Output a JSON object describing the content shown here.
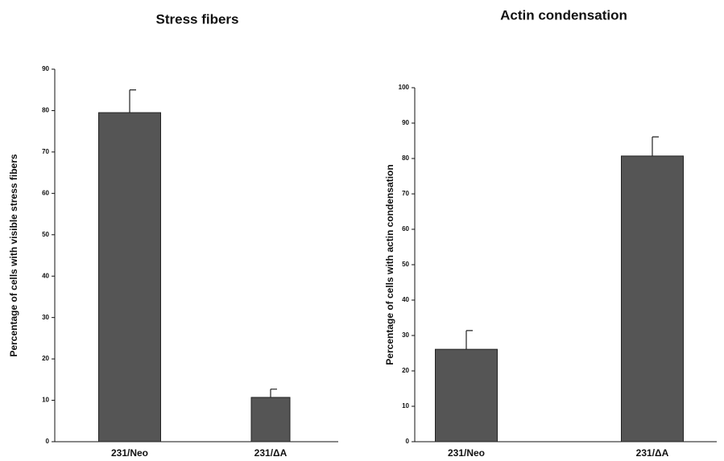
{
  "chart_data": [
    {
      "type": "bar",
      "title": "Stress fibers",
      "ylabel": "Percentage of cells with visible stress fibers",
      "categories": [
        "231/Neo",
        "231/ΔA"
      ],
      "values": [
        79.5,
        10.7
      ],
      "errors": [
        5.5,
        2.0
      ],
      "color": "#555555",
      "ylim": [
        0,
        90
      ],
      "yticks": [
        0,
        10,
        20,
        30,
        40,
        50,
        60,
        70,
        80,
        90
      ],
      "grid": false
    },
    {
      "type": "bar",
      "title": "Actin condensation",
      "ylabel": "Percentage of cells with actin condensation",
      "categories": [
        "231/Neo",
        "231/ΔA"
      ],
      "values": [
        26.1,
        80.7
      ],
      "errors": [
        5.3,
        5.4
      ],
      "color": "#555555",
      "ylim": [
        0,
        100
      ],
      "yticks": [
        0,
        10,
        20,
        30,
        40,
        50,
        60,
        70,
        80,
        90,
        100
      ],
      "grid": false
    }
  ]
}
